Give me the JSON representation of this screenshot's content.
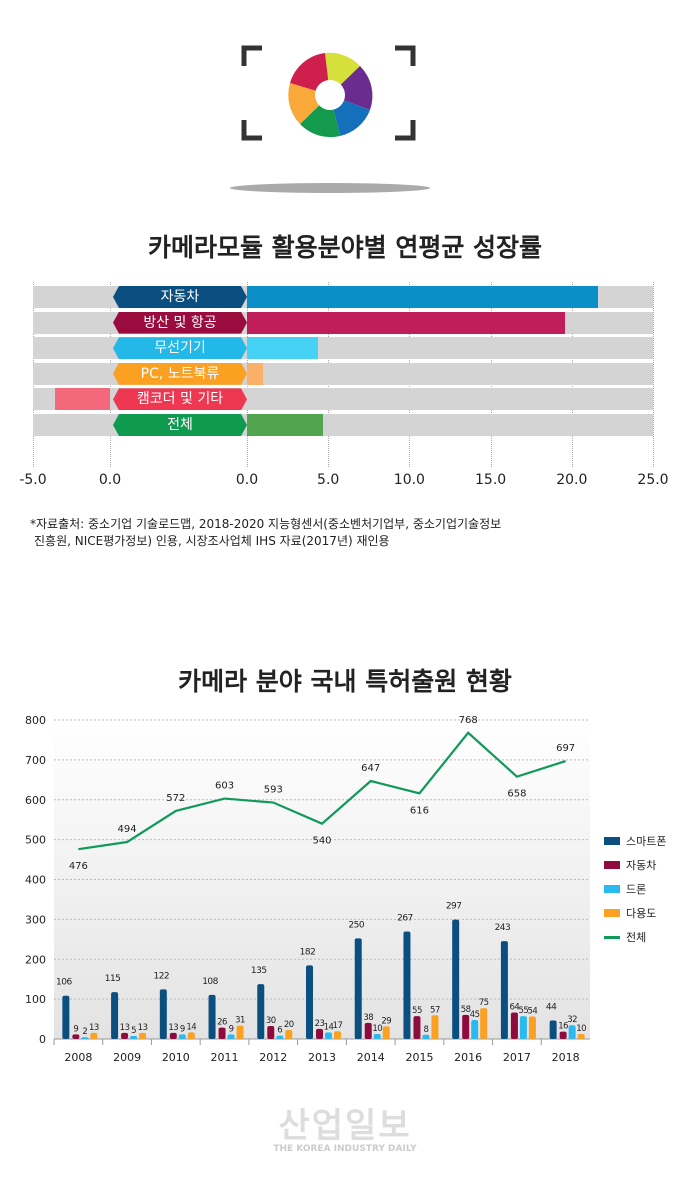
{
  "chart_data": [
    {
      "type": "bar",
      "orientation": "horizontal",
      "title": "카메라모듈 활용분야별 연평균 성장률",
      "categories": [
        "자동차",
        "방산 및 항공",
        "무선기기",
        "PC, 노트북류",
        "캠코더 및 기타",
        "전체"
      ],
      "values": [
        21.6,
        19.6,
        4.4,
        1.0,
        -3.6,
        4.7
      ],
      "colors": [
        "#0a8fc6",
        "#c01d5b",
        "#46d2f4",
        "#fbb06a",
        "#f3687a",
        "#52a54e"
      ],
      "tag_colors": [
        "#0b4f80",
        "#9a0b3e",
        "#22b8e8",
        "#fba020",
        "#ee3852",
        "#0e9a4f"
      ],
      "xlim": [
        -5,
        25
      ],
      "tick_labels_left": [
        "-5.0",
        "0.0"
      ],
      "tick_labels_right": [
        "0.0",
        "5.0",
        "10.0",
        "15.0",
        "20.0",
        "25.0"
      ],
      "grid": true,
      "note": [
        "*자료출처: 중소기업 기술로드맵, 2018-2020 지능형센서(중소벤처기업부, 중소기업기술정보",
        "진흥원, NICE평가정보) 인용, 시장조사업체 IHS 자료(2017년) 재인용"
      ]
    },
    {
      "type": "bar+line",
      "title": "카메라 분야 국내 특허출원 현황",
      "categories": [
        "2008",
        "2009",
        "2010",
        "2011",
        "2012",
        "2013",
        "2014",
        "2015",
        "2016",
        "2017",
        "2018"
      ],
      "ylim": [
        0,
        800
      ],
      "yticks": [
        "0",
        "100",
        "200",
        "300",
        "400",
        "500",
        "600",
        "700",
        "800"
      ],
      "legend": "right",
      "grid": true,
      "series": [
        {
          "name": "스마트폰",
          "type": "bar",
          "color": "#0b4f80",
          "values": [
            106,
            115,
            122,
            108,
            135,
            182,
            250,
            267,
            297,
            243,
            44
          ]
        },
        {
          "name": "자동차",
          "type": "bar",
          "color": "#8e0b3e",
          "values": [
            9,
            13,
            13,
            26,
            30,
            23,
            38,
            55,
            58,
            64,
            16
          ]
        },
        {
          "name": "드론",
          "type": "bar",
          "color": "#2bbaf0",
          "values": [
            2,
            5,
            9,
            9,
            6,
            14,
            10,
            8,
            45,
            55,
            32
          ]
        },
        {
          "name": "다용도",
          "type": "bar",
          "color": "#fba020",
          "values": [
            13,
            13,
            14,
            31,
            20,
            17,
            29,
            57,
            75,
            54,
            10
          ]
        },
        {
          "name": "전체",
          "type": "line",
          "color": "#11995a",
          "values": [
            476,
            494,
            572,
            603,
            593,
            540,
            647,
            616,
            768,
            658,
            697
          ]
        }
      ]
    }
  ],
  "watermark": {
    "name": "산업일보",
    "sub": "THE KOREA INDUSTRY DAILY"
  }
}
